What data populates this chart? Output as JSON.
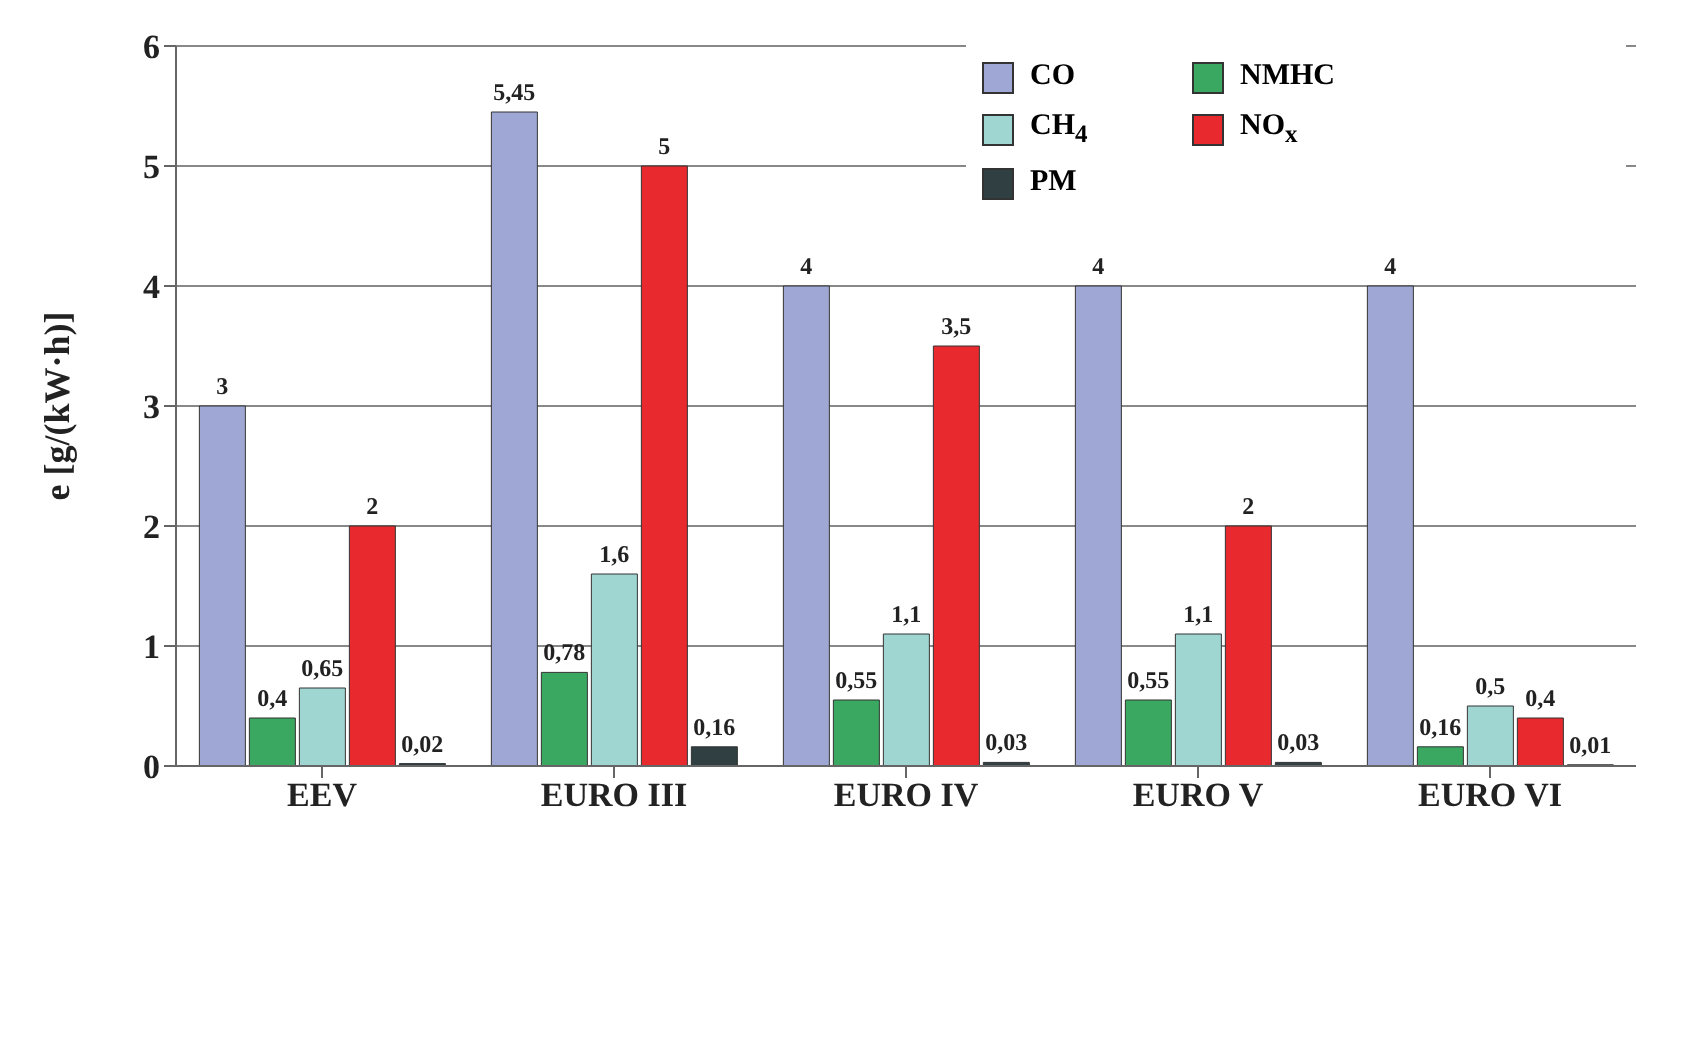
{
  "chart_data": {
    "type": "bar",
    "ylabel": "e [g/(kW·h)]",
    "categories": [
      "EEV",
      "EURO III",
      "EURO IV",
      "EURO V",
      "EURO VI"
    ],
    "series": [
      {
        "name": "CO",
        "color": "#9fa8d4",
        "values": [
          3,
          5.45,
          4,
          4,
          4
        ],
        "value_labels": [
          "3",
          "5,45",
          "4",
          "4",
          "4"
        ]
      },
      {
        "name": "NMHC",
        "color": "#3aa860",
        "values": [
          0.4,
          0.78,
          0.55,
          0.55,
          0.16
        ],
        "value_labels": [
          "0,4",
          "0,78",
          "0,55",
          "0,55",
          "0,16"
        ]
      },
      {
        "name": "CH$_{4}$",
        "color": "#9fd6d2",
        "values": [
          0.65,
          1.6,
          1.1,
          1.1,
          0.5
        ],
        "value_labels": [
          "0,65",
          "1,6",
          "1,1",
          "1,1",
          "0,5"
        ]
      },
      {
        "name": "NO$_{x}$",
        "color": "#e8292e",
        "values": [
          2,
          5,
          3.5,
          2,
          0.4
        ],
        "value_labels": [
          "2",
          "5",
          "3,5",
          "2",
          "0,4"
        ]
      },
      {
        "name": "PM",
        "color": "#2f3f42",
        "values": [
          0.02,
          0.16,
          0.03,
          0.03,
          0.01
        ],
        "value_labels": [
          "0,02",
          "0,16",
          "0,03",
          "0,03",
          "0,01"
        ]
      }
    ],
    "ylim": [
      0,
      6
    ],
    "yticks": [
      0,
      1,
      2,
      3,
      4,
      5,
      6
    ],
    "grid": "y",
    "legend": "top right"
  }
}
